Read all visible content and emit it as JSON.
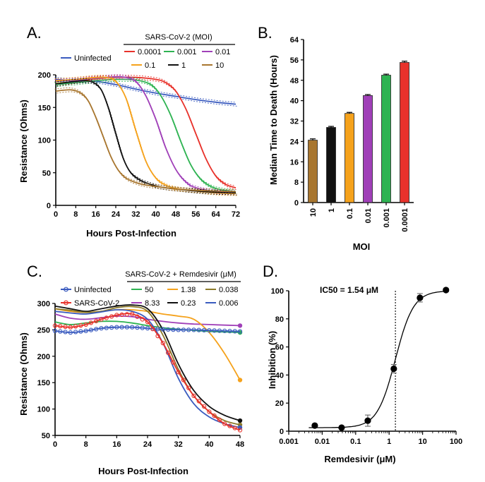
{
  "colors": {
    "uninfected": "#3a5bbf",
    "moi_0.0001": "#e8322b",
    "moi_0.001": "#2eb352",
    "moi_0.01": "#a040b8",
    "moi_0.1": "#f5a21c",
    "moi_1": "#111111",
    "moi_10": "#a8762f",
    "rdv_50": "#2eb352",
    "rdv_8.33": "#a040b8",
    "rdv_1.38": "#f5a21c",
    "rdv_0.23": "#111111",
    "rdv_0.038": "#8c7a2a",
    "rdv_0.006": "#3a5bbf"
  },
  "chart_data": [
    {
      "panel": "A.",
      "type": "line",
      "xlabel": "Hours Post-Infection",
      "ylabel": "Resistance (Ohms)",
      "xlim": [
        0,
        72
      ],
      "ylim": [
        0,
        200
      ],
      "xticks": [
        0,
        8,
        16,
        24,
        32,
        40,
        48,
        56,
        64,
        72
      ],
      "yticks": [
        0,
        50,
        100,
        150,
        200
      ],
      "legend_title": "SARS-CoV-2 (MOI)",
      "legend_items": [
        "Uninfected",
        "0.0001",
        "0.001",
        "0.01",
        "0.1",
        "1",
        "10"
      ],
      "series": [
        {
          "name": "Uninfected",
          "color_key": "uninfected",
          "x": [
            0,
            8,
            16,
            24,
            32,
            40,
            48,
            56,
            64,
            72
          ],
          "y": [
            193,
            191,
            190,
            185,
            178,
            172,
            167,
            162,
            158,
            155
          ]
        },
        {
          "name": "0.0001",
          "color_key": "moi_0.0001",
          "x": [
            0,
            8,
            16,
            24,
            32,
            40,
            44,
            48,
            52,
            56,
            60,
            64,
            68,
            72
          ],
          "y": [
            186,
            190,
            194,
            196,
            196,
            193,
            188,
            175,
            148,
            110,
            72,
            45,
            32,
            27
          ]
        },
        {
          "name": "0.001",
          "color_key": "moi_0.001",
          "x": [
            0,
            8,
            16,
            24,
            32,
            38,
            42,
            46,
            50,
            54,
            58,
            62,
            66,
            72
          ],
          "y": [
            185,
            188,
            191,
            193,
            192,
            185,
            168,
            138,
            98,
            62,
            40,
            29,
            24,
            21
          ]
        },
        {
          "name": "0.01",
          "color_key": "moi_0.01",
          "x": [
            0,
            8,
            16,
            24,
            28,
            32,
            36,
            40,
            44,
            48,
            52,
            56,
            64,
            72
          ],
          "y": [
            190,
            192,
            195,
            197,
            196,
            190,
            168,
            132,
            88,
            55,
            36,
            27,
            21,
            19
          ]
        },
        {
          "name": "0.1",
          "color_key": "moi_0.1",
          "x": [
            0,
            8,
            16,
            20,
            24,
            28,
            32,
            36,
            40,
            44,
            48,
            56,
            64,
            72
          ],
          "y": [
            191,
            193,
            196,
            196,
            190,
            165,
            115,
            68,
            42,
            31,
            26,
            22,
            19,
            18
          ]
        },
        {
          "name": "1",
          "color_key": "moi_1",
          "x": [
            0,
            8,
            14,
            18,
            21,
            24,
            27,
            30,
            34,
            38,
            42,
            48,
            56,
            64,
            72
          ],
          "y": [
            186,
            190,
            190,
            178,
            150,
            110,
            72,
            50,
            38,
            32,
            28,
            25,
            22,
            20,
            19
          ]
        },
        {
          "name": "10",
          "color_key": "moi_10",
          "x": [
            0,
            6,
            10,
            13,
            16,
            19,
            22,
            25,
            28,
            32,
            36,
            42,
            48,
            56,
            64,
            72
          ],
          "y": [
            175,
            177,
            172,
            160,
            135,
            105,
            75,
            54,
            42,
            35,
            31,
            28,
            25,
            23,
            22,
            21
          ]
        }
      ]
    },
    {
      "panel": "B.",
      "type": "bar",
      "xlabel": "MOI",
      "ylabel": "Median Time to Death (Hours)",
      "ylim": [
        0,
        64
      ],
      "yticks": [
        0,
        8,
        16,
        24,
        32,
        40,
        48,
        56,
        64
      ],
      "categories": [
        "10",
        "1",
        "0.1",
        "0.01",
        "0.001",
        "0.0001"
      ],
      "values": [
        24.5,
        29.5,
        35,
        42,
        50,
        55
      ],
      "errors": [
        0.5,
        0.4,
        0.4,
        0.4,
        0.4,
        0.5
      ],
      "color_keys": [
        "moi_10",
        "moi_1",
        "moi_0.1",
        "moi_0.01",
        "moi_0.001",
        "moi_0.0001"
      ]
    },
    {
      "panel": "C.",
      "type": "line",
      "xlabel": "Hours Post-Infection",
      "ylabel": "Resistance (Ohms)",
      "xlim": [
        0,
        48
      ],
      "ylim": [
        50,
        300
      ],
      "xticks": [
        0,
        8,
        16,
        24,
        32,
        40,
        48
      ],
      "yticks": [
        50,
        100,
        150,
        200,
        250,
        300
      ],
      "legend_title": "SARS-CoV-2 + Remdesivir (μM)",
      "legend_items": [
        "Uninfected",
        "SARS-CoV-2",
        "50",
        "8.33",
        "1.38",
        "0.23",
        "0.038",
        "0.006"
      ],
      "series": [
        {
          "name": "Uninfected",
          "color_key": "uninfected",
          "marker": "circle",
          "x": [
            0,
            4,
            8,
            12,
            16,
            20,
            24,
            28,
            32,
            36,
            40,
            44,
            48
          ],
          "y": [
            248,
            245,
            248,
            253,
            255,
            255,
            253,
            251,
            250,
            250,
            249,
            248,
            247
          ]
        },
        {
          "name": "SARS-CoV-2",
          "color_key": "moi_0.0001",
          "marker": "circle",
          "x": [
            0,
            4,
            8,
            12,
            16,
            20,
            24,
            28,
            32,
            36,
            40,
            44,
            48
          ],
          "y": [
            258,
            255,
            260,
            270,
            278,
            280,
            265,
            225,
            170,
            125,
            95,
            72,
            60
          ]
        },
        {
          "name": "50",
          "color_key": "rdv_50",
          "x": [
            0,
            4,
            8,
            12,
            16,
            20,
            24,
            28,
            32,
            36,
            40,
            44,
            48
          ],
          "y": [
            265,
            260,
            263,
            266,
            266,
            263,
            258,
            254,
            251,
            249,
            247,
            246,
            245
          ]
        },
        {
          "name": "8.33",
          "color_key": "rdv_8.33",
          "x": [
            0,
            4,
            8,
            12,
            16,
            20,
            24,
            28,
            32,
            36,
            40,
            44,
            48
          ],
          "y": [
            280,
            272,
            270,
            273,
            276,
            275,
            270,
            266,
            263,
            261,
            260,
            259,
            258
          ]
        },
        {
          "name": "1.38",
          "color_key": "rdv_1.38",
          "x": [
            0,
            4,
            8,
            12,
            16,
            20,
            24,
            28,
            32,
            36,
            40,
            44,
            48
          ],
          "y": [
            290,
            285,
            283,
            285,
            288,
            288,
            285,
            280,
            276,
            270,
            245,
            205,
            155
          ]
        },
        {
          "name": "0.23",
          "color_key": "rdv_0.23",
          "x": [
            0,
            4,
            8,
            12,
            16,
            20,
            24,
            28,
            32,
            36,
            40,
            44,
            48
          ],
          "y": [
            295,
            290,
            285,
            290,
            295,
            297,
            290,
            250,
            185,
            135,
            105,
            88,
            78
          ]
        },
        {
          "name": "0.038",
          "color_key": "rdv_0.038",
          "x": [
            0,
            4,
            8,
            12,
            16,
            20,
            24,
            28,
            32,
            36,
            40,
            44,
            48
          ],
          "y": [
            290,
            287,
            283,
            285,
            292,
            294,
            285,
            240,
            175,
            125,
            95,
            78,
            70
          ]
        },
        {
          "name": "0.006",
          "color_key": "rdv_0.006",
          "x": [
            0,
            4,
            8,
            12,
            16,
            20,
            24,
            28,
            32,
            36,
            40,
            44,
            48
          ],
          "y": [
            285,
            282,
            280,
            284,
            288,
            285,
            270,
            225,
            158,
            110,
            85,
            72,
            65
          ]
        }
      ]
    },
    {
      "panel": "D.",
      "type": "scatter",
      "xlabel": "Remdesivir (μM)",
      "ylabel": "Inhibition (%)",
      "xscale": "log",
      "xlim": [
        0.001,
        100
      ],
      "ylim": [
        0,
        100
      ],
      "xticks": [
        0.001,
        0.01,
        0.1,
        1,
        10,
        100
      ],
      "xtick_labels": [
        "0.001",
        "0.01",
        "0.1",
        "1",
        "10",
        "100"
      ],
      "yticks": [
        0,
        20,
        40,
        60,
        80,
        100
      ],
      "annotation": "IC50 = 1.54 μM",
      "ic50": 1.54,
      "points": {
        "x": [
          0.006,
          0.038,
          0.23,
          1.38,
          8.33,
          50
        ],
        "y": [
          4,
          2.5,
          7.5,
          44.5,
          95,
          100.5
        ],
        "err": [
          0.5,
          0.5,
          4,
          3,
          3,
          1
        ]
      }
    }
  ]
}
